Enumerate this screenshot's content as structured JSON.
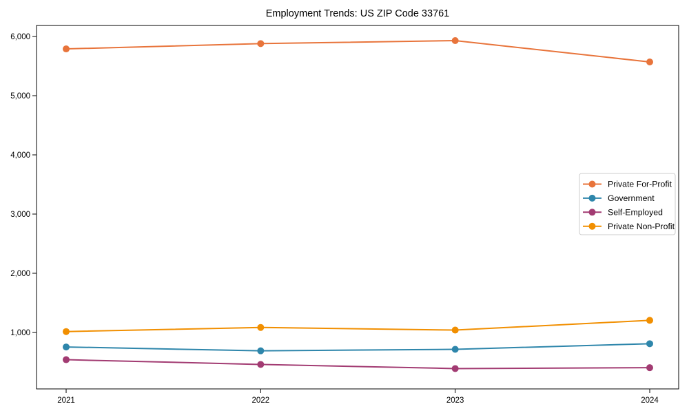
{
  "page": {
    "background_color": "#ffffff",
    "axis_color": "#000000",
    "legend_border_color": "#cccccc"
  },
  "chart_data": {
    "type": "line",
    "title": "Employment Trends: US ZIP Code 33761",
    "xlabel": "",
    "ylabel": "",
    "grid": false,
    "x": [
      2021,
      2022,
      2023,
      2024
    ],
    "x_tick_labels": [
      "2021",
      "2022",
      "2023",
      "2024"
    ],
    "y_ticks": [
      1000,
      2000,
      3000,
      4000,
      5000,
      6000
    ],
    "y_tick_labels": [
      "1,000",
      "2,000",
      "3,000",
      "4,000",
      "5,000",
      "6,000"
    ],
    "ylim": [
      40,
      6190
    ],
    "legend_position": "right-middle",
    "marker": "circle",
    "series": [
      {
        "name": "Private For-Profit",
        "color": "#e8743b",
        "values": [
          5790,
          5880,
          5930,
          5570
        ]
      },
      {
        "name": "Government",
        "color": "#2e86ab",
        "values": [
          755,
          690,
          715,
          810
        ]
      },
      {
        "name": "Self-Employed",
        "color": "#a23b72",
        "values": [
          540,
          460,
          390,
          405
        ]
      },
      {
        "name": "Private Non-Profit",
        "color": "#f18f01",
        "values": [
          1015,
          1085,
          1040,
          1205
        ]
      }
    ]
  }
}
